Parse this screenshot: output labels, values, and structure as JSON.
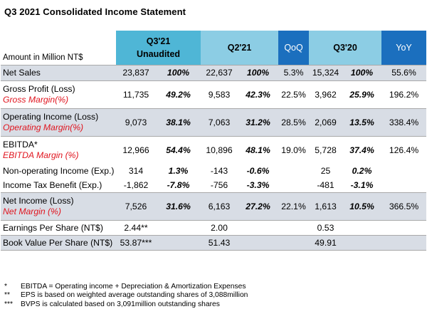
{
  "title": "Q3 2021 Consolidated Income Statement",
  "header": {
    "label": "Amount in Million NT$",
    "q3_21_line1": "Q3'21",
    "q3_21_line2": "Unaudited",
    "q2_21": "Q2'21",
    "qoq": "QoQ",
    "q3_20": "Q3'20",
    "yoy": "YoY"
  },
  "rows": [
    {
      "label": "Net Sales",
      "sublabel": "",
      "q3_21": "23,837",
      "q3_21_pct": "100%",
      "q2_21": "22,637",
      "q2_21_pct": "100%",
      "qoq": "5.3%",
      "q3_20": "15,324",
      "q3_20_pct": "100%",
      "yoy": "55.6%"
    },
    {
      "label": "Gross Profit (Loss)",
      "sublabel": "Gross Margin(%)",
      "q3_21": "11,735",
      "q3_21_pct": "49.2%",
      "q2_21": "9,583",
      "q2_21_pct": "42.3%",
      "qoq": "22.5%",
      "q3_20": "3,962",
      "q3_20_pct": "25.9%",
      "yoy": "196.2%"
    },
    {
      "label": "Operating Income (Loss)",
      "sublabel": "Operating Margin(%)",
      "q3_21": "9,073",
      "q3_21_pct": "38.1%",
      "q2_21": "7,063",
      "q2_21_pct": "31.2%",
      "qoq": "28.5%",
      "q3_20": "2,069",
      "q3_20_pct": "13.5%",
      "yoy": "338.4%"
    },
    {
      "label": "EBITDA*",
      "sublabel": "EBITDA Margin (%)",
      "q3_21": "12,966",
      "q3_21_pct": "54.4%",
      "q2_21": "10,896",
      "q2_21_pct": "48.1%",
      "qoq": "19.0%",
      "q3_20": "5,728",
      "q3_20_pct": "37.4%",
      "yoy": "126.4%"
    },
    {
      "label": "Non-operating Income (Exp.)",
      "sublabel": "",
      "q3_21": "314",
      "q3_21_pct": "1.3%",
      "q2_21": "-143",
      "q2_21_pct": "-0.6%",
      "qoq": "",
      "q3_20": "25",
      "q3_20_pct": "0.2%",
      "yoy": ""
    },
    {
      "label": "Income Tax Benefit (Exp.)",
      "sublabel": "",
      "q3_21": "-1,862",
      "q3_21_pct": "-7.8%",
      "q2_21": "-756",
      "q2_21_pct": "-3.3%",
      "qoq": "",
      "q3_20": "-481",
      "q3_20_pct": "-3.1%",
      "yoy": ""
    },
    {
      "label": "Net Income (Loss)",
      "sublabel": "Net Margin (%)",
      "q3_21": "7,526",
      "q3_21_pct": "31.6%",
      "q2_21": "6,163",
      "q2_21_pct": "27.2%",
      "qoq": "22.1%",
      "q3_20": "1,613",
      "q3_20_pct": "10.5%",
      "yoy": "366.5%"
    },
    {
      "label": "Earnings Per Share (NT$)",
      "sublabel": "",
      "q3_21": "2.44**",
      "q3_21_pct": "",
      "q2_21": "2.00",
      "q2_21_pct": "",
      "qoq": "",
      "q3_20": "0.53",
      "q3_20_pct": "",
      "yoy": ""
    },
    {
      "label": "Book Value Per Share (NT$)",
      "sublabel": "",
      "q3_21": "53.87***",
      "q3_21_pct": "",
      "q2_21": "51.43",
      "q2_21_pct": "",
      "qoq": "",
      "q3_20": "49.91",
      "q3_20_pct": "",
      "yoy": ""
    }
  ],
  "notes": [
    {
      "mark": "*",
      "text": "EBITDA = Operating income + Depreciation & Amortization Expenses"
    },
    {
      "mark": "**",
      "text": "EPS is based on weighted average outstanding shares of 3,088million"
    },
    {
      "mark": "***",
      "text": "BVPS is calculated based on 3,091million outstanding shares"
    }
  ],
  "colors": {
    "highlight_row": "#d8dde5",
    "header_q3_21": "#4fb6d6",
    "header_period": "#8ccde4",
    "header_change": "#1b6fbe",
    "sublabel_red": "#e0141e"
  }
}
